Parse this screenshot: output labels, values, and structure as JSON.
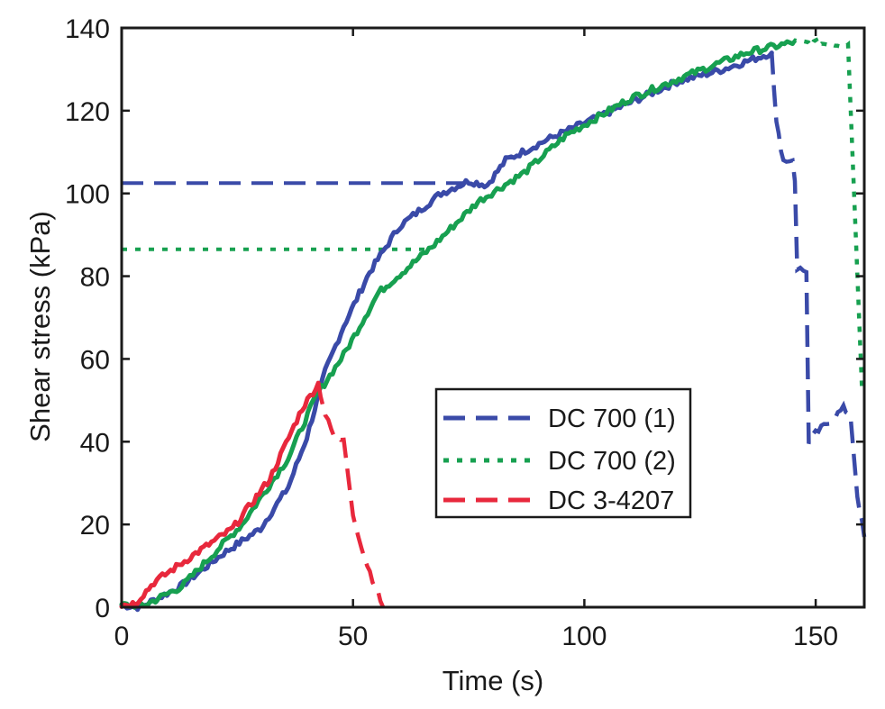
{
  "chart_data": {
    "type": "line",
    "title": "",
    "xlabel": "Time (s)",
    "ylabel": "Shear stress (kPa)",
    "xlim": [
      0,
      160.5
    ],
    "ylim": [
      0,
      140
    ],
    "xticks": [
      0,
      50,
      100,
      150
    ],
    "yticks": [
      0,
      20,
      40,
      60,
      80,
      100,
      120,
      140
    ],
    "grid": false,
    "legend_position": "center-right",
    "series": [
      {
        "name": "DC 700 (1)",
        "color": "#3a4aa8",
        "style": "dashed",
        "peak_reference": 102.5,
        "x": [
          0,
          4,
          12.7,
          22,
          30,
          36,
          40,
          44,
          48,
          53.6,
          60,
          69,
          75,
          79,
          83,
          92,
          102,
          110,
          120,
          130,
          140.5,
          141,
          141.5,
          143,
          145,
          145.5,
          146,
          148,
          148.5,
          150,
          156,
          157.5,
          159,
          160.5
        ],
        "y": [
          0.5,
          0,
          5,
          13,
          19,
          29,
          41,
          57,
          68,
          81,
          92,
          100,
          103,
          102,
          108,
          113,
          118,
          122,
          127,
          130,
          134,
          125,
          117,
          108,
          108,
          103,
          82,
          81,
          40,
          42,
          48,
          46.5,
          27,
          17
        ]
      },
      {
        "name": "DC 700 (2)",
        "color": "#17a050",
        "style": "dotted",
        "peak_reference": 86.5,
        "x": [
          0,
          5,
          13,
          26,
          36,
          42,
          48,
          55.5,
          67,
          77,
          87,
          96,
          110,
          121,
          135,
          145,
          157,
          160
        ],
        "y": [
          0.5,
          0.5,
          5,
          20,
          36,
          51,
          61,
          76,
          87,
          98,
          105,
          114,
          123,
          128,
          134,
          136.5,
          136,
          53
        ]
      },
      {
        "name": "DC 3-4207",
        "color": "#e8283c",
        "style": "dashed",
        "peak_reference": 54.5,
        "x": [
          0,
          3,
          7,
          16,
          24,
          32,
          39,
          42.5,
          44,
          46,
          48,
          50,
          52.5,
          56.5
        ],
        "y": [
          0.5,
          1,
          6,
          13,
          19,
          31,
          48,
          54,
          46.5,
          41,
          40.5,
          22.5,
          12,
          0
        ]
      }
    ]
  }
}
